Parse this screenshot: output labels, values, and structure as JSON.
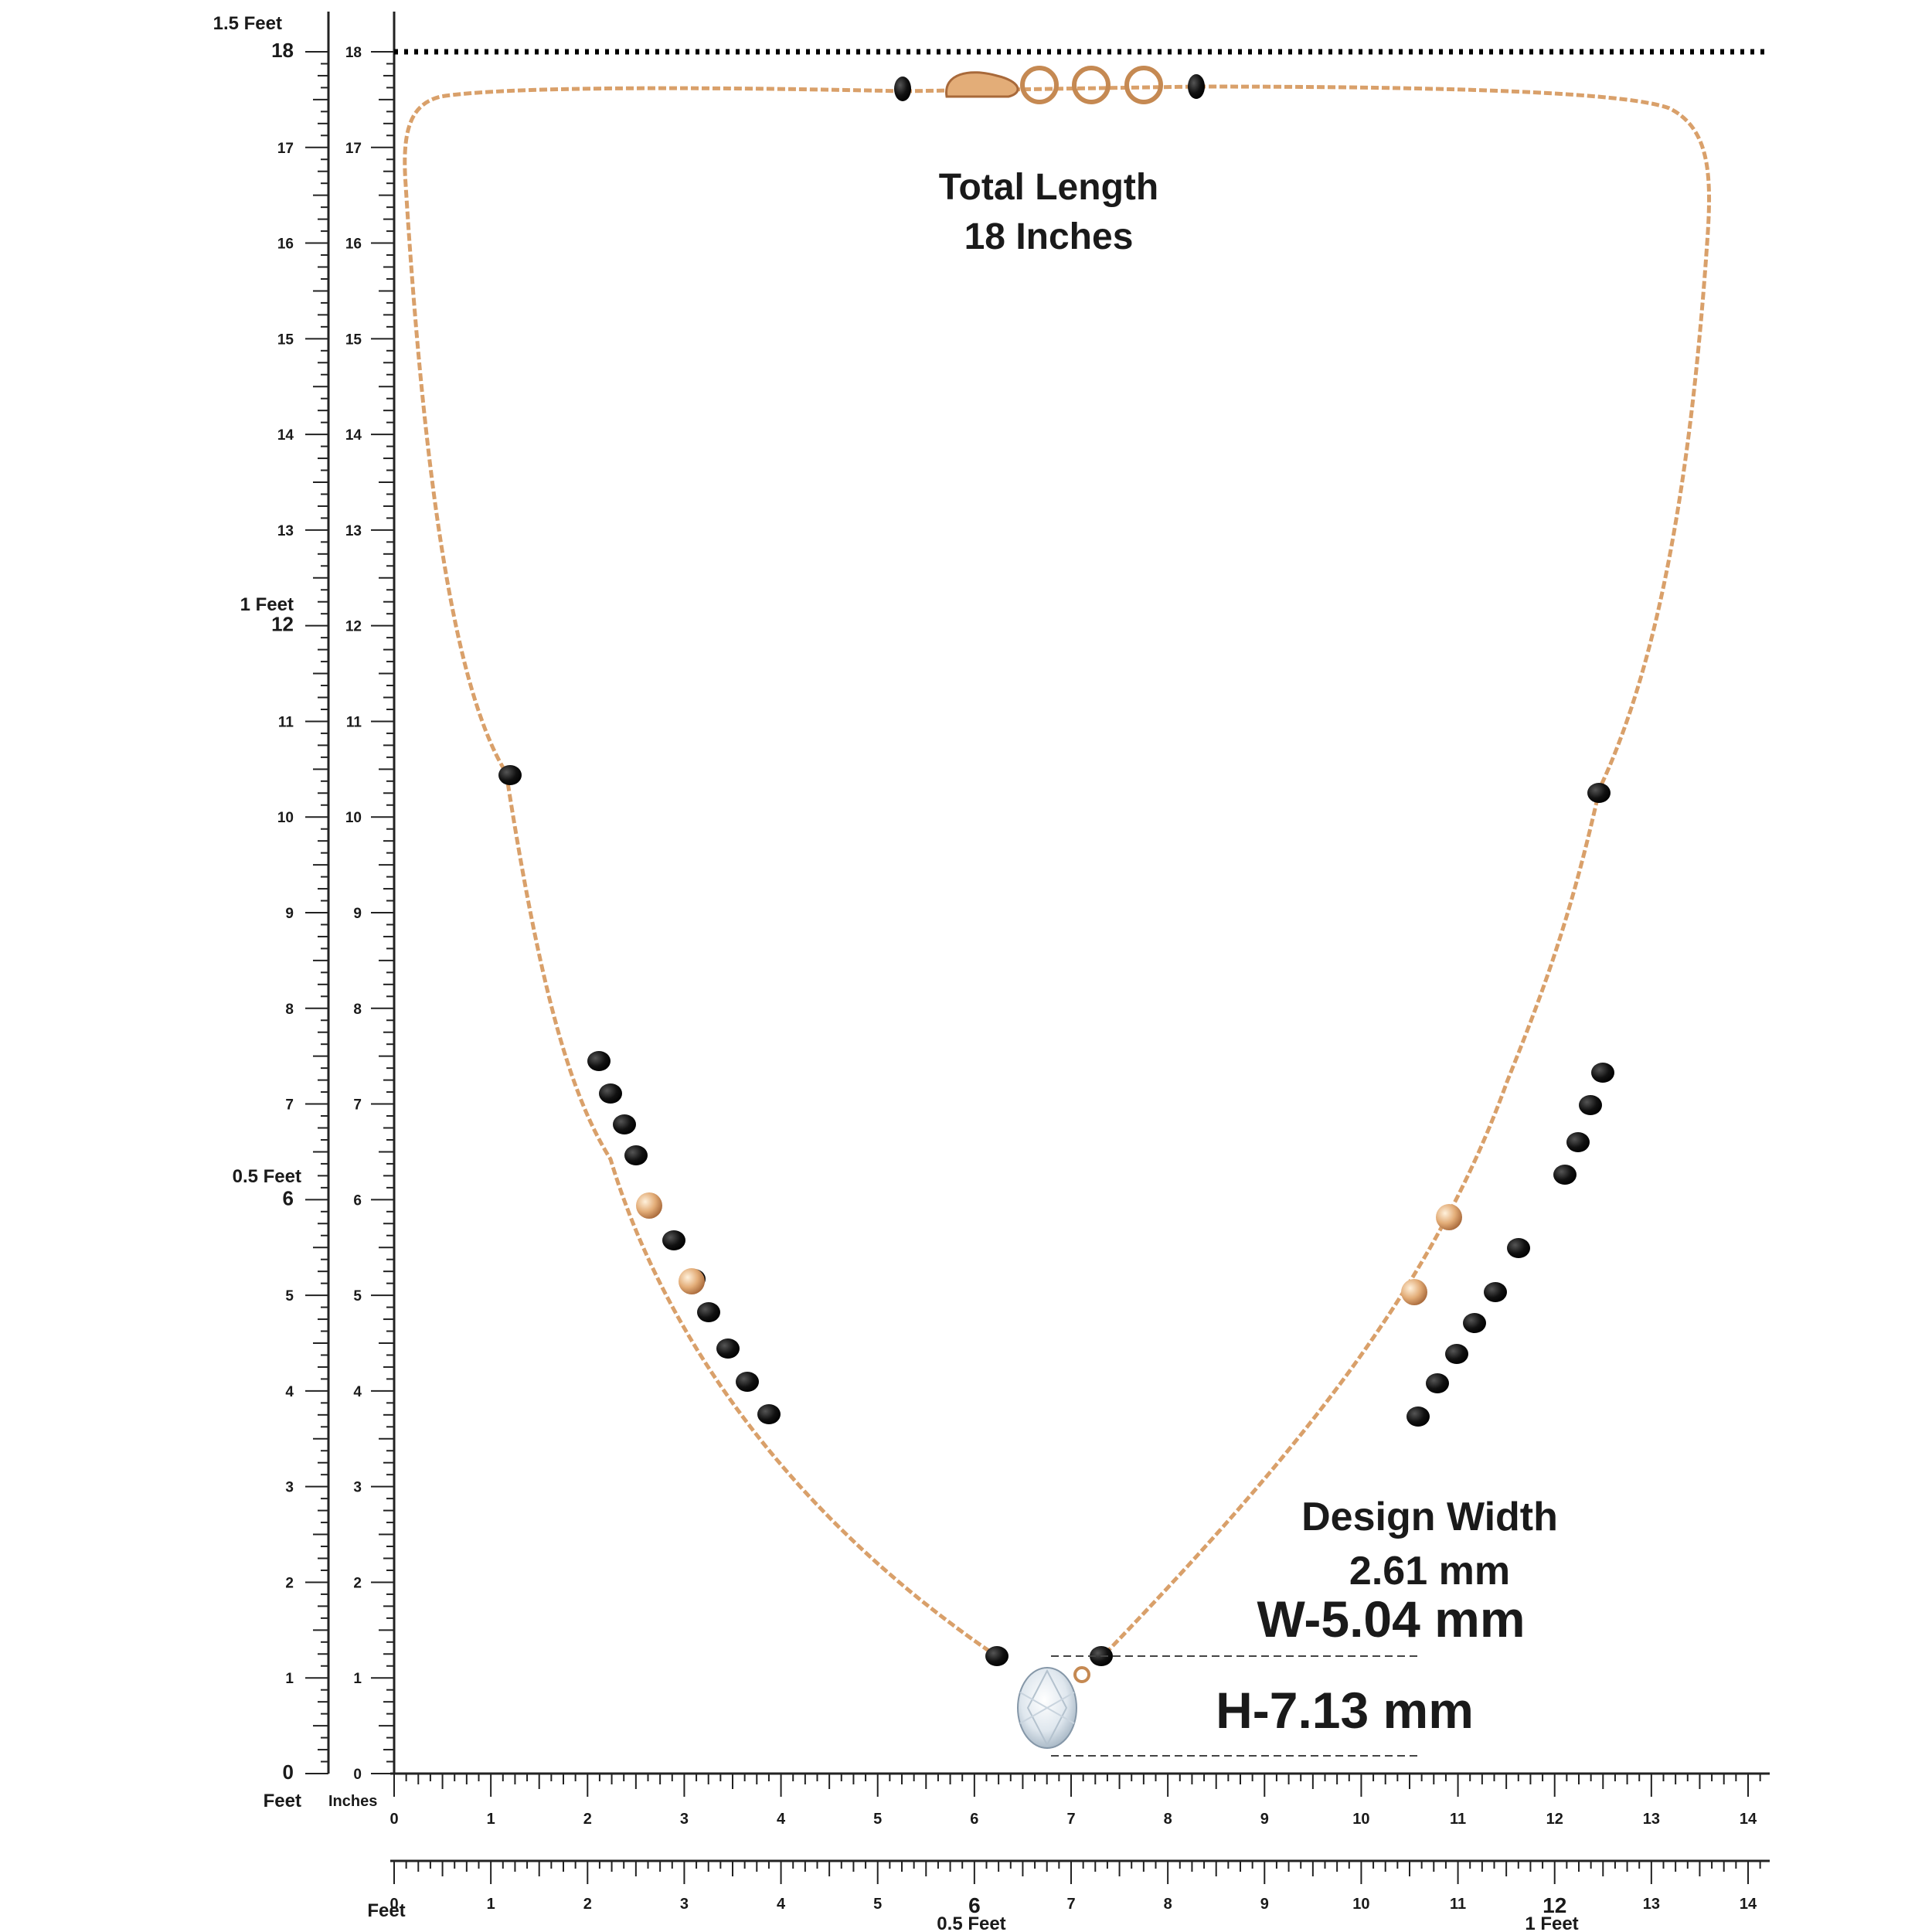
{
  "colors": {
    "chain": "#d9a06a",
    "chain_dark": "#b97a47",
    "black_bead": "#111111",
    "gold_bead": "#e8b98a",
    "dotted_line": "#000000",
    "text": "#1a1a1a"
  },
  "left_ruler": {
    "feet_labels": {
      "one_half": "1.5 Feet",
      "one": "1 Feet",
      "half": "0.5 Feet",
      "zero": "Feet"
    },
    "unit_label": "Inches",
    "inch_numbers": [
      "0",
      "1",
      "2",
      "3",
      "4",
      "5",
      "6",
      "7",
      "8",
      "9",
      "10",
      "11",
      "12",
      "13",
      "14",
      "15",
      "16",
      "17",
      "18"
    ]
  },
  "bottom_ruler": {
    "inch_numbers": [
      "0",
      "1",
      "2",
      "3",
      "4",
      "5",
      "6",
      "7",
      "8",
      "9",
      "10",
      "11",
      "12",
      "13",
      "14"
    ],
    "second_row_feet_label": "Feet",
    "half_feet_label": "0.5 Feet",
    "one_feet_label": "1 Feet"
  },
  "annotations": {
    "total_length_title": "Total Length",
    "total_length_value": "18 Inches",
    "design_width_title": "Design Width",
    "design_width_value": "2.61 mm",
    "pendant_width": "W-5.04 mm",
    "pendant_height": "H-7.13 mm"
  },
  "icons": {
    "necklace": "necklace-illustration",
    "clasp": "lobster-clasp-icon",
    "pendant": "diamond-pendant-icon"
  }
}
